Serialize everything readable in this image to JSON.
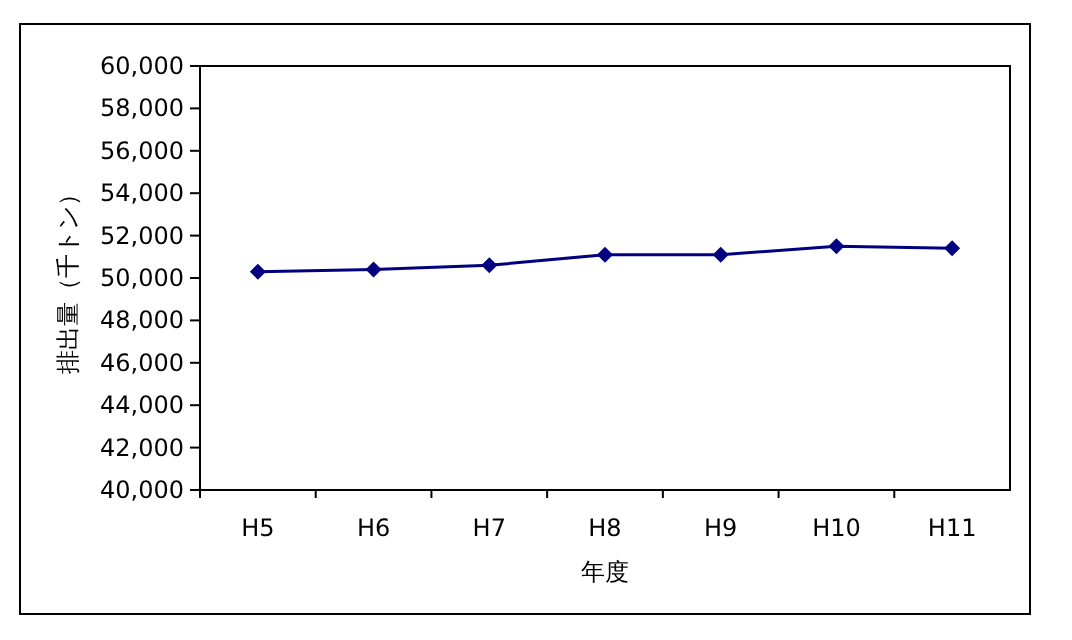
{
  "chart_data": {
    "type": "line",
    "xlabel": "年度",
    "ylabel": "排出量（千トン）",
    "categories": [
      "H5",
      "H6",
      "H7",
      "H8",
      "H9",
      "H10",
      "H11"
    ],
    "series": [
      {
        "color": "#000080",
        "values": [
          50300,
          50400,
          50600,
          51100,
          51100,
          51500,
          51400
        ]
      }
    ],
    "marker": "diamond",
    "line_style": "solid",
    "ylim": [
      40000,
      60000
    ],
    "yticks": [
      {
        "value": 40000,
        "label": "40,000"
      },
      {
        "value": 42000,
        "label": "42,000"
      },
      {
        "value": 44000,
        "label": "44,000"
      },
      {
        "value": 46000,
        "label": "46,000"
      },
      {
        "value": 48000,
        "label": "48,000"
      },
      {
        "value": 50000,
        "label": "50,000"
      },
      {
        "value": 52000,
        "label": "52,000"
      },
      {
        "value": 54000,
        "label": "54,000"
      },
      {
        "value": 56000,
        "label": "56,000"
      },
      {
        "value": 58000,
        "label": "58,000"
      },
      {
        "value": 60000,
        "label": "60,000"
      }
    ]
  }
}
